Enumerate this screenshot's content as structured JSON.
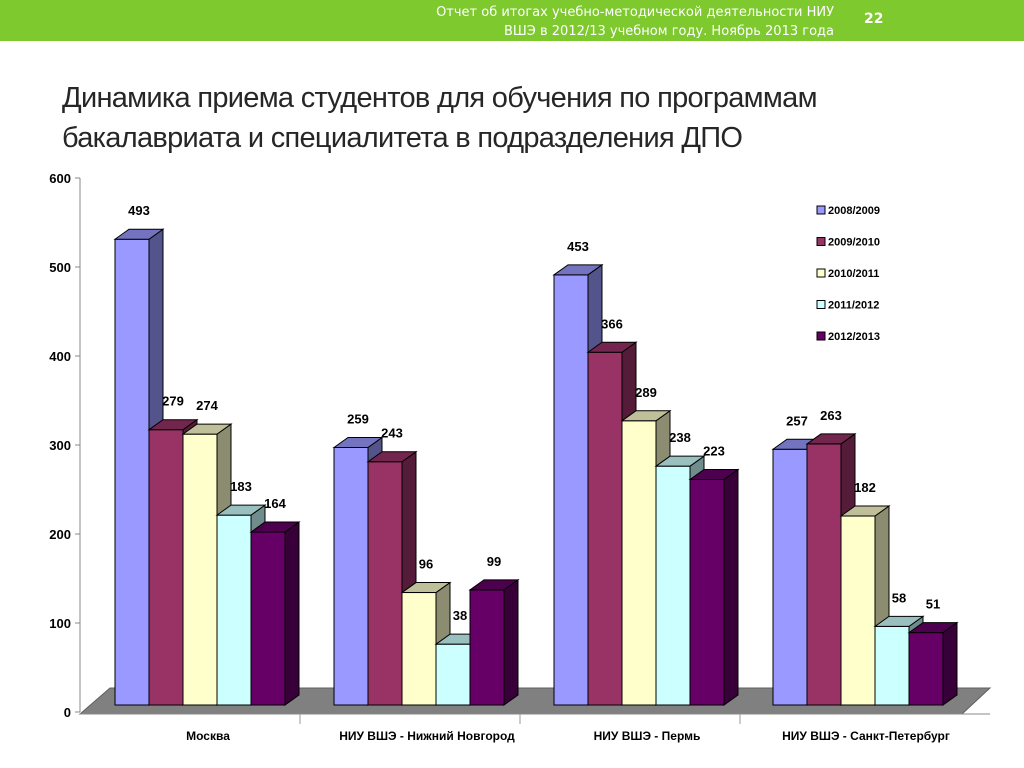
{
  "slide": {
    "header_line1": "Отчет об итогах учебно-методической деятельности НИУ",
    "header_line2": "ВШЭ в 2012/13 учебном году. Ноябрь 2013 года",
    "page_number": "22",
    "title_line1": "Динамика приема студентов для обучения по программам",
    "title_line2": "бакалавриата и специалитета в подразделения ДПО",
    "accent_color": "#7dc92e"
  },
  "chart_data": {
    "type": "bar",
    "title": "",
    "xlabel": "",
    "ylabel": "",
    "ylim": [
      0,
      600
    ],
    "yticks": [
      0,
      100,
      200,
      300,
      400,
      500,
      600
    ],
    "categories": [
      "Москва",
      "НИУ ВШЭ - Нижний Новгород",
      "НИУ ВШЭ - Пермь",
      "НИУ ВШЭ - Санкт-Петербург"
    ],
    "series": [
      {
        "name": "2008/2009",
        "color": "#9999ff",
        "values": [
          493,
          259,
          453,
          257
        ]
      },
      {
        "name": "2009/2010",
        "color": "#993366",
        "values": [
          279,
          243,
          366,
          263
        ]
      },
      {
        "name": "2010/2011",
        "color": "#ffffcc",
        "values": [
          274,
          96,
          289,
          182
        ]
      },
      {
        "name": "2011/2012",
        "color": "#ccffff",
        "values": [
          183,
          38,
          238,
          58
        ]
      },
      {
        "name": "2012/2013",
        "color": "#660066",
        "values": [
          164,
          99,
          223,
          51
        ]
      }
    ],
    "legend_position": "top-right",
    "grid": false,
    "three_d": true
  }
}
